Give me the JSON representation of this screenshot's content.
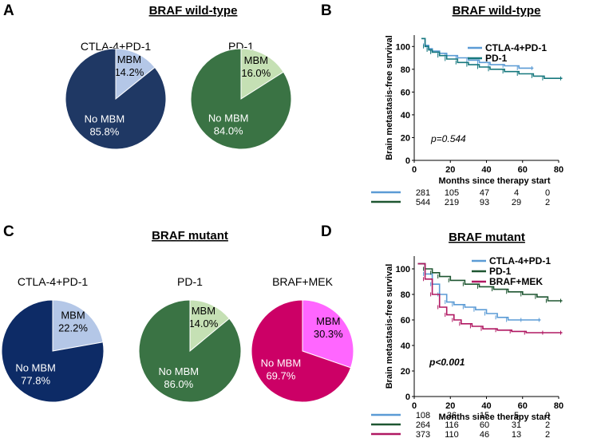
{
  "panels": {
    "A": {
      "label": "A",
      "title": "BRAF wild-type"
    },
    "B": {
      "label": "B",
      "title": "BRAF wild-type"
    },
    "C": {
      "label": "C",
      "title": "BRAF mutant"
    },
    "D": {
      "label": "D",
      "title": "BRAF mutant"
    }
  },
  "colors": {
    "navy": "#1f3864",
    "navy_dark": "#0d2b66",
    "light_blue": "#b4c7e7",
    "green": "#3a7344",
    "light_green": "#c5e0b4",
    "magenta": "#cc0066",
    "pink": "#ff66ff",
    "km_blue": "#5b9bd5",
    "km_green": "#1e5631",
    "km_teal": "#17787e"
  },
  "chart_data": [
    {
      "type": "pie",
      "panel": "A",
      "title": "CTLA-4+PD-1",
      "slices": [
        {
          "label": "MBM",
          "value": 14.2,
          "display": "14.2%",
          "color": "#b4c7e7",
          "text_color": "#000000"
        },
        {
          "label": "No MBM",
          "value": 85.8,
          "display": "85.8%",
          "color": "#1f3864",
          "text_color": "#ffffff"
        }
      ]
    },
    {
      "type": "pie",
      "panel": "A",
      "title": "PD-1",
      "slices": [
        {
          "label": "MBM",
          "value": 16.0,
          "display": "16.0%",
          "color": "#c5e0b4",
          "text_color": "#000000"
        },
        {
          "label": "No MBM",
          "value": 84.0,
          "display": "84.0%",
          "color": "#3a7344",
          "text_color": "#ffffff"
        }
      ]
    },
    {
      "type": "pie",
      "panel": "C",
      "title": "CTLA-4+PD-1",
      "slices": [
        {
          "label": "MBM",
          "value": 22.2,
          "display": "22.2%",
          "color": "#b4c7e7",
          "text_color": "#000000"
        },
        {
          "label": "No MBM",
          "value": 77.8,
          "display": "77.8%",
          "color": "#0d2b66",
          "text_color": "#ffffff"
        }
      ]
    },
    {
      "type": "pie",
      "panel": "C",
      "title": "PD-1",
      "slices": [
        {
          "label": "MBM",
          "value": 14.0,
          "display": "14.0%",
          "color": "#c5e0b4",
          "text_color": "#000000"
        },
        {
          "label": "No MBM",
          "value": 86.0,
          "display": "86.0%",
          "color": "#3a7344",
          "text_color": "#ffffff"
        }
      ]
    },
    {
      "type": "pie",
      "panel": "C",
      "title": "BRAF+MEK",
      "slices": [
        {
          "label": "MBM",
          "value": 30.3,
          "display": "30.3%",
          "color": "#ff66ff",
          "text_color": "#000000"
        },
        {
          "label": "No MBM",
          "value": 69.7,
          "display": "69.7%",
          "color": "#cc0066",
          "text_color": "#ffffff"
        }
      ]
    },
    {
      "type": "line",
      "subtype": "kaplan-meier",
      "panel": "B",
      "ylabel": "Brain metastasis-free survival",
      "xlabel": "Months since therapy start",
      "xlim": [
        0,
        80
      ],
      "ylim": [
        0,
        110
      ],
      "xticks": [
        0,
        20,
        40,
        60,
        80
      ],
      "yticks": [
        0,
        20,
        40,
        60,
        80,
        100
      ],
      "pvalue": "p=0.544",
      "legend_position": "top-right",
      "series": [
        {
          "name": "CTLA-4+PD-1",
          "color": "#5b9bd5",
          "x": [
            4,
            6,
            8,
            10,
            14,
            18,
            24,
            30,
            36,
            42,
            50,
            58,
            66
          ],
          "y": [
            107,
            101,
            98,
            96,
            94,
            92,
            90,
            88,
            86,
            84,
            83,
            81,
            81
          ],
          "risk": [
            "281",
            "105",
            "47",
            "4",
            "0"
          ]
        },
        {
          "name": "PD-1",
          "color": "#17787e",
          "x": [
            4,
            6,
            8,
            10,
            14,
            18,
            24,
            30,
            36,
            42,
            50,
            58,
            66,
            72,
            82
          ],
          "y": [
            107,
            100,
            97,
            95,
            92,
            89,
            86,
            84,
            82,
            80,
            78,
            76,
            74,
            72,
            72
          ],
          "risk": [
            "544",
            "219",
            "93",
            "29",
            "2"
          ]
        }
      ],
      "risk_colors": [
        "#5b9bd5",
        "#1e5631"
      ]
    },
    {
      "type": "line",
      "subtype": "kaplan-meier",
      "panel": "D",
      "ylabel": "Brain metastasis-free survival",
      "xlabel": "Months since therapy start",
      "xlim": [
        0,
        80
      ],
      "ylim": [
        0,
        110
      ],
      "xticks": [
        0,
        20,
        40,
        60,
        80
      ],
      "yticks": [
        0,
        20,
        40,
        60,
        80,
        100
      ],
      "pvalue": "p<0.001",
      "legend_position": "top-right",
      "series": [
        {
          "name": "CTLA-4+PD-1",
          "color": "#5b9bd5",
          "x": [
            2,
            6,
            10,
            14,
            18,
            22,
            28,
            34,
            40,
            46,
            52,
            60,
            70
          ],
          "y": [
            104,
            96,
            88,
            80,
            74,
            72,
            70,
            68,
            65,
            62,
            60,
            60,
            60
          ],
          "risk": [
            "108",
            "36",
            "15",
            "5",
            "0"
          ]
        },
        {
          "name": "PD-1",
          "color": "#1e5631",
          "x": [
            2,
            6,
            10,
            14,
            20,
            28,
            36,
            44,
            52,
            60,
            68,
            74,
            82
          ],
          "y": [
            104,
            100,
            97,
            94,
            91,
            88,
            86,
            84,
            82,
            80,
            78,
            75,
            75
          ],
          "risk": [
            "264",
            "116",
            "60",
            "31",
            "2"
          ]
        },
        {
          "name": "BRAF+MEK",
          "color": "#b01862",
          "x": [
            2,
            6,
            10,
            14,
            18,
            22,
            26,
            32,
            38,
            46,
            54,
            62,
            72,
            82
          ],
          "y": [
            104,
            92,
            80,
            70,
            64,
            60,
            57,
            55,
            53,
            52,
            51,
            50,
            50,
            50
          ],
          "risk": [
            "373",
            "110",
            "46",
            "13",
            "2"
          ]
        }
      ],
      "risk_colors": [
        "#5b9bd5",
        "#1e5631",
        "#b01862"
      ]
    }
  ]
}
